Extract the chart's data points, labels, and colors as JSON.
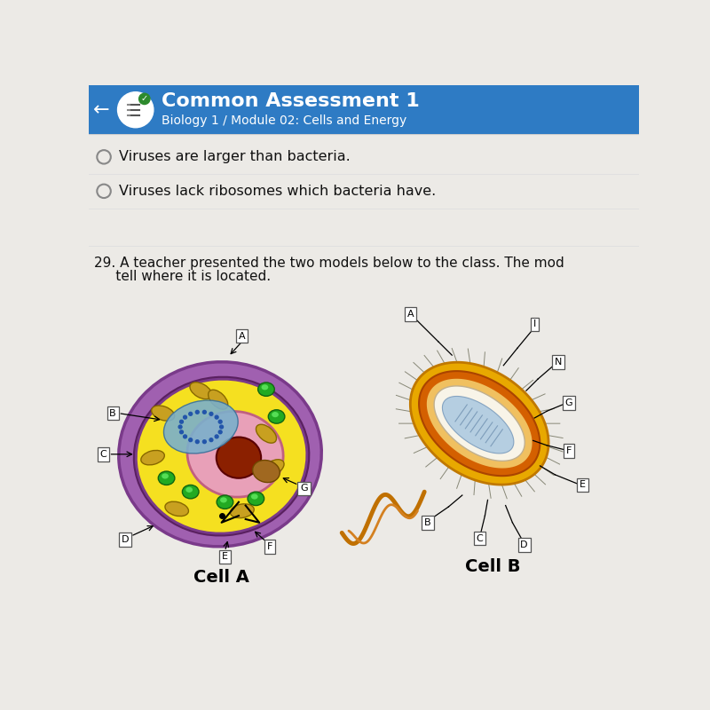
{
  "bg_color": "#eceae6",
  "header_color": "#2e7bc4",
  "header_title": "Common Assessment 1",
  "header_subtitle": "Biology 1 / Module 02: Cells and Energy",
  "option1": "Viruses are larger than bacteria.",
  "option2": "Viruses lack ribosomes which bacteria have.",
  "question_text": "29. A teacher presented the two models below to the class. The mod",
  "question_text2": "     tell where it is located.",
  "cell_a_label": "Cell A",
  "cell_b_label": "Cell B",
  "label_bg": "#ffffff"
}
